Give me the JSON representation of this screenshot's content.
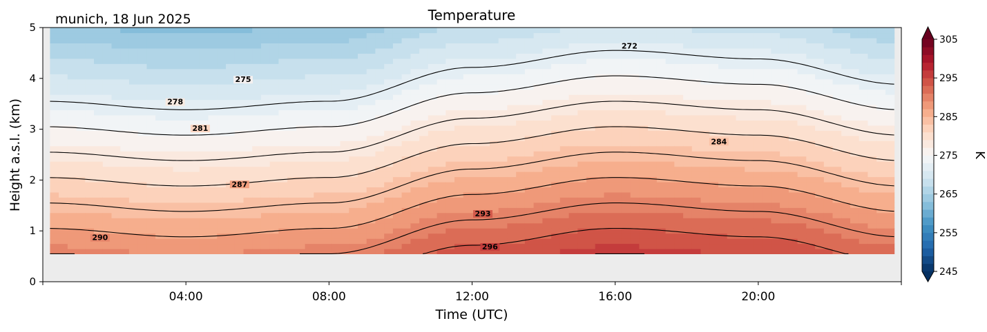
{
  "chart_data": {
    "type": "heatmap",
    "title": "Temperature",
    "subtitle": "munich, 18 Jun 2025",
    "xlabel": "Time (UTC)",
    "ylabel": "Height a.s.l. (km)",
    "xlim": [
      0,
      24
    ],
    "ylim": [
      0,
      5
    ],
    "data_ylim": [
      0.55,
      5
    ],
    "x_ticks": [
      {
        "value": 4,
        "label": "04:00"
      },
      {
        "value": 8,
        "label": "08:00"
      },
      {
        "value": 12,
        "label": "12:00"
      },
      {
        "value": 16,
        "label": "16:00"
      },
      {
        "value": 20,
        "label": "20:00"
      }
    ],
    "y_ticks": [
      {
        "value": 0,
        "label": "0"
      },
      {
        "value": 1,
        "label": "1"
      },
      {
        "value": 2,
        "label": "2"
      },
      {
        "value": 3,
        "label": "3"
      },
      {
        "value": 4,
        "label": "4"
      },
      {
        "value": 5,
        "label": "5"
      }
    ],
    "colorbar": {
      "label": "K",
      "range": [
        245,
        305
      ],
      "colormap": "RdBu_r",
      "extend": "both",
      "ticks": [
        {
          "value": 245,
          "label": "245"
        },
        {
          "value": 255,
          "label": "255"
        },
        {
          "value": 265,
          "label": "265"
        },
        {
          "value": 275,
          "label": "275"
        },
        {
          "value": 285,
          "label": "285"
        },
        {
          "value": 295,
          "label": "295"
        },
        {
          "value": 305,
          "label": "305"
        }
      ]
    },
    "contours": [
      {
        "level": 290,
        "label": "290",
        "label_x": 1.6,
        "label_y": 0.83
      },
      {
        "level": 293,
        "label": "293",
        "label_x": 12.3,
        "label_y": 1.3
      },
      {
        "level": 296,
        "label": "296",
        "label_x": 12.5,
        "label_y": 0.65
      },
      {
        "level": 287,
        "label": "287",
        "label_x": 5.5,
        "label_y": 1.88
      },
      {
        "level": 284,
        "label": "284",
        "label_x": 18.9,
        "label_y": 2.72
      },
      {
        "level": 281,
        "label": "281",
        "label_x": 4.4,
        "label_y": 2.98
      },
      {
        "level": 278,
        "label": "278",
        "label_x": 3.7,
        "label_y": 3.5
      },
      {
        "level": 275,
        "label": "275",
        "label_x": 5.6,
        "label_y": 3.94
      },
      {
        "level": 272,
        "label": "272",
        "label_x": 16.4,
        "label_y": 4.6
      }
    ],
    "surface_temperature_by_hour": [
      {
        "t": 0,
        "k": 290
      },
      {
        "t": 4,
        "k": 289
      },
      {
        "t": 8,
        "k": 290
      },
      {
        "t": 12,
        "k": 294
      },
      {
        "t": 16,
        "k": 296
      },
      {
        "t": 20,
        "k": 295
      },
      {
        "t": 24,
        "k": 292
      }
    ],
    "lapse_rate_k_per_km": 6
  }
}
